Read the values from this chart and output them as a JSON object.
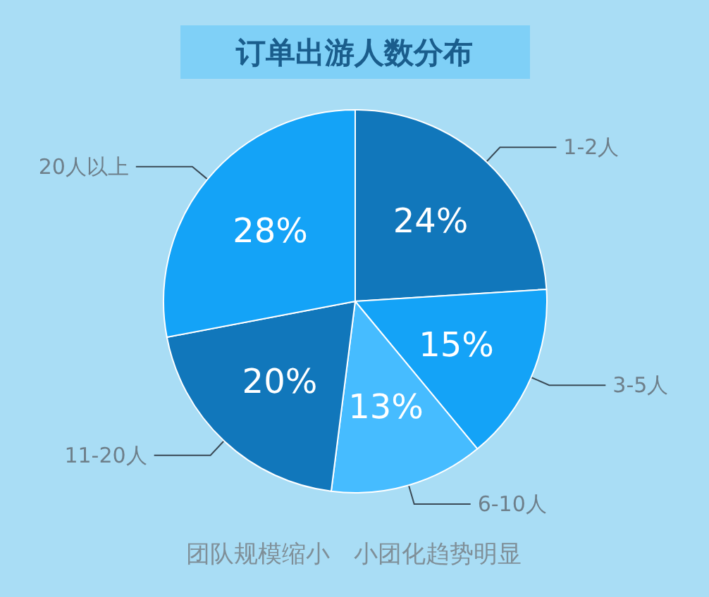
{
  "chart_data": {
    "type": "pie",
    "title": "订单出游人数分布",
    "categories": [
      "1-2人",
      "3-5人",
      "6-10人",
      "11-20人",
      "20人以上"
    ],
    "values": [
      24,
      15,
      13,
      20,
      28
    ],
    "value_labels": [
      "24%",
      "15%",
      "13%",
      "20%",
      "28%"
    ],
    "colors": [
      "#1177bb",
      "#14a3f7",
      "#46bcff",
      "#1177bb",
      "#14a3f7"
    ],
    "annotations": [
      "团队规模缩小　小团化趋势明显"
    ]
  }
}
